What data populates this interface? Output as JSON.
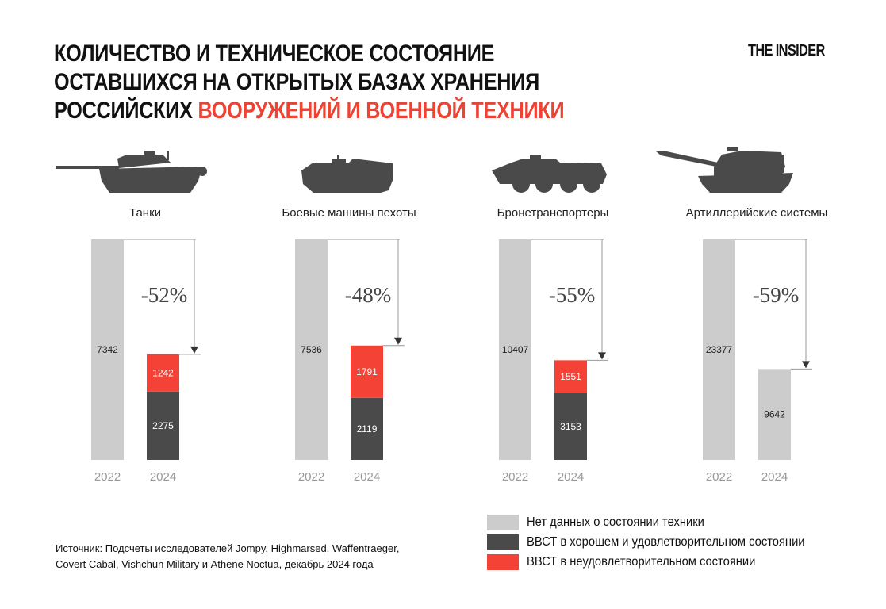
{
  "header": {
    "title_line1": "КОЛИЧЕСТВО И ТЕХНИЧЕСКОЕ СОСТОЯНИЕ",
    "title_line2": "ОСТАВШИХСЯ НА ОТКРЫТЫХ БАЗАХ ХРАНЕНИЯ",
    "title_line3_black": "РОССИЙСКИХ ",
    "title_line3_red": "ВООРУЖЕНИЙ И ВОЕННОЙ ТЕХНИКИ",
    "logo": "THE INSIDER"
  },
  "colors": {
    "no_data": "#cccccc",
    "good": "#4a4a4a",
    "bad": "#f44336",
    "accent_red": "#ee4233"
  },
  "chart_data": {
    "type": "bar",
    "stacked": true,
    "scale": "each panel normalized to its 2022 value",
    "categories": [
      "2022",
      "2024"
    ],
    "panels": [
      {
        "title": "Танки",
        "icon": "tank-icon",
        "change": "-52%",
        "v2022": 7342,
        "v2024": {
          "good": 2275,
          "bad": 1242,
          "no_data": null
        }
      },
      {
        "title": "Боевые машины пехоты",
        "icon": "ifv-icon",
        "change": "-48%",
        "v2022": 7536,
        "v2024": {
          "good": 2119,
          "bad": 1791,
          "no_data": null
        }
      },
      {
        "title": "Бронетранспортеры",
        "icon": "apc-icon",
        "change": "-55%",
        "v2022": 10407,
        "v2024": {
          "good": 3153,
          "bad": 1551,
          "no_data": null
        }
      },
      {
        "title": "Артиллерийские системы",
        "icon": "artillery-icon",
        "change": "-59%",
        "v2022": 23377,
        "v2024": {
          "good": null,
          "bad": null,
          "no_data": 9642
        }
      }
    ],
    "legend": [
      {
        "key": "no_data",
        "label": "Нет данных о состоянии техники"
      },
      {
        "key": "good",
        "label": "ВВСТ в хорошем и удовлетворительном состоянии"
      },
      {
        "key": "bad",
        "label": "ВВСТ в неудовлетворительном состоянии"
      }
    ],
    "legend_position": "bottom-right",
    "grid": false
  },
  "source": {
    "line1": "Источник: Подсчеты исследователей Jompy, Highmarsed, Waffentraeger,",
    "line2": "Covert Cabal, Vishchun Military и Athene Noctua, декабрь 2024 года"
  }
}
